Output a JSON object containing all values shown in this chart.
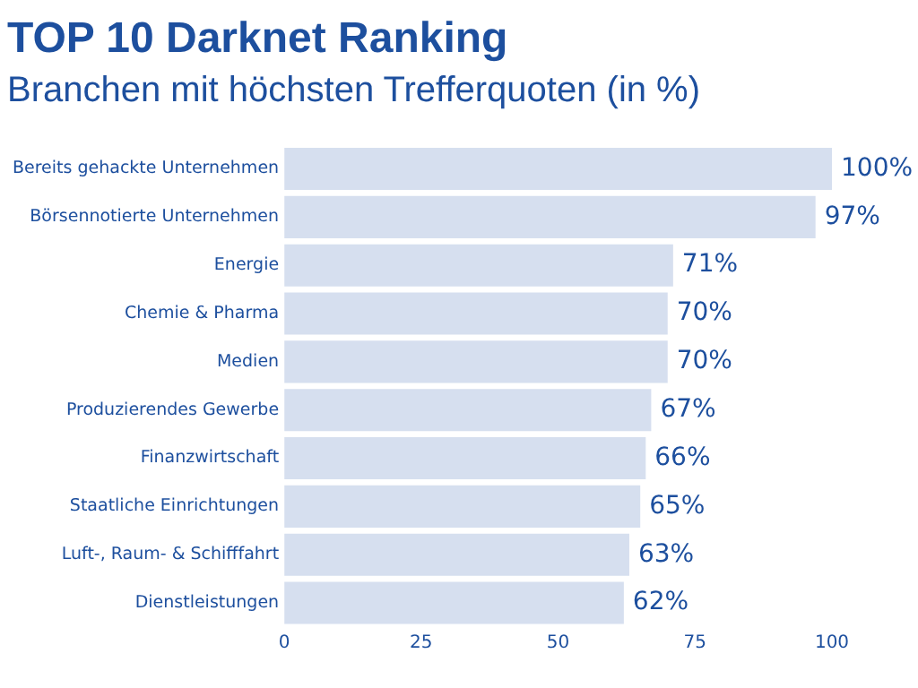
{
  "chart_data": {
    "type": "bar",
    "orientation": "horizontal",
    "title": "TOP 10 Darknet Ranking",
    "subtitle": "Branchen mit höchsten Trefferquoten (in %)",
    "categories": [
      "Bereits gehackte Unternehmen",
      "Börsennotierte Unternehmen",
      "Energie",
      "Chemie & Pharma",
      "Medien",
      "Produzierendes Gewerbe",
      "Finanzwirtschaft",
      "Staatliche Einrichtungen",
      "Luft-, Raum- & Schifffahrt",
      "Dienstleistungen"
    ],
    "values": [
      100,
      97,
      71,
      70,
      70,
      67,
      66,
      65,
      63,
      62
    ],
    "value_labels": [
      "100%",
      "97%",
      "71%",
      "70%",
      "70%",
      "67%",
      "66%",
      "65%",
      "63%",
      "62%"
    ],
    "color": "#d6dfef",
    "xlim": [
      0,
      100
    ],
    "xticks": [
      0,
      25,
      50,
      75,
      100
    ],
    "grid": false,
    "legend": false
  }
}
